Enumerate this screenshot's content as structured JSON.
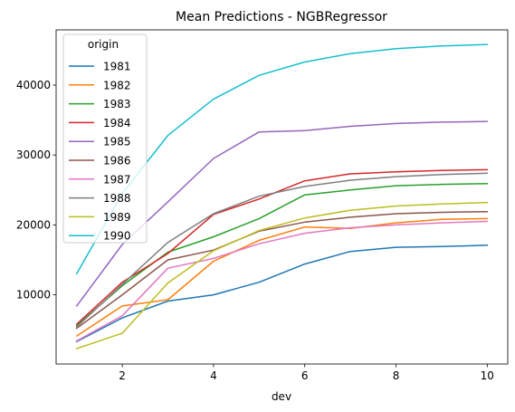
{
  "chart_data": {
    "type": "line",
    "title": "Mean Predictions - NGBRegressor",
    "xlabel": "dev",
    "ylabel": "",
    "x": [
      1,
      2,
      3,
      4,
      5,
      6,
      7,
      8,
      9,
      10
    ],
    "xticks": [
      2,
      4,
      6,
      8,
      10
    ],
    "yticks": [
      10000,
      20000,
      30000,
      40000
    ],
    "xlim": [
      0.55,
      10.45
    ],
    "ylim": [
      100,
      47900
    ],
    "grid": false,
    "legend": {
      "title": "origin",
      "placement": "upper-left"
    },
    "series": [
      {
        "name": "1981",
        "color": "#1f77b4",
        "values": [
          3300,
          6700,
          9100,
          10000,
          11800,
          14400,
          16200,
          16800,
          16900,
          17100
        ]
      },
      {
        "name": "1982",
        "color": "#ff7f0e",
        "values": [
          4100,
          8400,
          9300,
          14800,
          17800,
          19700,
          19500,
          20300,
          20800,
          20900
        ]
      },
      {
        "name": "1983",
        "color": "#2ca02c",
        "values": [
          5600,
          11300,
          16100,
          18300,
          20900,
          24300,
          25000,
          25600,
          25800,
          25900
        ]
      },
      {
        "name": "1984",
        "color": "#d62728",
        "values": [
          5800,
          11800,
          15900,
          21500,
          23700,
          26300,
          27300,
          27600,
          27800,
          27900
        ]
      },
      {
        "name": "1985",
        "color": "#9467bd",
        "values": [
          8400,
          17200,
          23300,
          29500,
          33300,
          33500,
          34100,
          34500,
          34700,
          34800
        ]
      },
      {
        "name": "1986",
        "color": "#8c564b",
        "values": [
          5200,
          10000,
          15000,
          16400,
          19100,
          20400,
          21100,
          21600,
          21800,
          21900
        ]
      },
      {
        "name": "1987",
        "color": "#e377c2",
        "values": [
          3400,
          7000,
          13800,
          15200,
          17300,
          18800,
          19600,
          20000,
          20300,
          20500
        ]
      },
      {
        "name": "1988",
        "color": "#7f7f7f",
        "values": [
          5400,
          11500,
          17500,
          21600,
          24100,
          25500,
          26400,
          26900,
          27200,
          27400
        ]
      },
      {
        "name": "1989",
        "color": "#bcbd22",
        "values": [
          2300,
          4500,
          11700,
          16300,
          19200,
          21000,
          22100,
          22700,
          23000,
          23200
        ]
      },
      {
        "name": "1990",
        "color": "#17becf",
        "values": [
          13000,
          24500,
          32800,
          38000,
          41400,
          43300,
          44500,
          45200,
          45600,
          45800
        ]
      }
    ]
  }
}
